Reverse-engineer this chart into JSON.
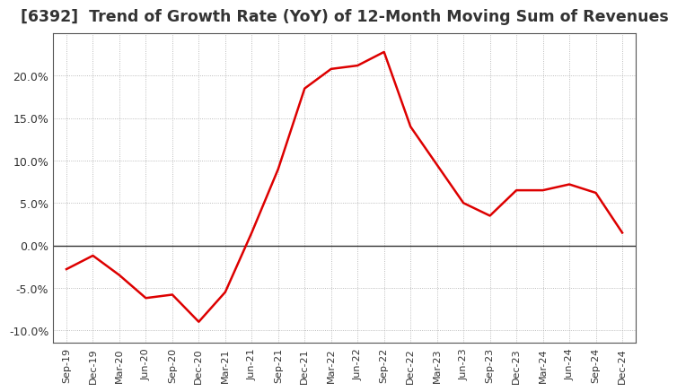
{
  "title": "[6392]  Trend of Growth Rate (YoY) of 12-Month Moving Sum of Revenues",
  "title_fontsize": 12.5,
  "line_color": "#dd0000",
  "background_color": "#ffffff",
  "grid_color": "#aaaaaa",
  "x_labels": [
    "Sep-19",
    "Dec-19",
    "Mar-20",
    "Jun-20",
    "Sep-20",
    "Dec-20",
    "Mar-21",
    "Jun-21",
    "Sep-21",
    "Dec-21",
    "Mar-22",
    "Jun-22",
    "Sep-22",
    "Dec-22",
    "Mar-23",
    "Jun-23",
    "Sep-23",
    "Dec-23",
    "Mar-24",
    "Jun-24",
    "Sep-24",
    "Dec-24"
  ],
  "y_values": [
    -2.8,
    -1.2,
    -3.5,
    -6.2,
    -5.8,
    -9.0,
    -5.5,
    1.5,
    9.0,
    18.5,
    20.8,
    21.2,
    22.8,
    14.0,
    9.5,
    5.0,
    3.5,
    6.5,
    6.5,
    7.2,
    6.2,
    1.5
  ],
  "ylim": [
    -11.5,
    25
  ],
  "yticks": [
    -10.0,
    -5.0,
    0.0,
    5.0,
    10.0,
    15.0,
    20.0
  ]
}
